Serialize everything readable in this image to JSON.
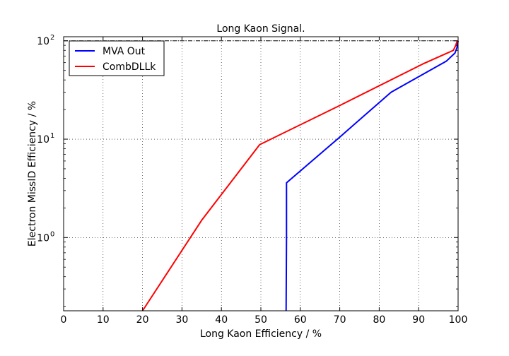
{
  "chart_data": {
    "type": "line",
    "title": "Long Kaon Signal.",
    "xlabel": "Long Kaon Efficiency / %",
    "ylabel": "Electron MissID Efficiency / %",
    "xlim": [
      0,
      100
    ],
    "ylim": [
      0.18,
      110
    ],
    "yscale": "log",
    "grid": true,
    "legend_position": "top-left",
    "x_ticks": [
      0,
      10,
      20,
      30,
      40,
      50,
      60,
      70,
      80,
      90,
      100
    ],
    "x_tick_labels": [
      "0",
      "10",
      "20",
      "30",
      "40",
      "50",
      "60",
      "70",
      "80",
      "90",
      "100"
    ],
    "y_ticks": [
      1,
      10,
      100
    ],
    "y_tick_labels": [
      "10^0",
      "10^1",
      "10^2"
    ],
    "reference_line": {
      "y": 100,
      "style": "dash-dot"
    },
    "series": [
      {
        "name": "MVA Out",
        "color": "#0000ff",
        "points": [
          [
            56.4,
            0.18
          ],
          [
            56.5,
            1.0
          ],
          [
            56.5,
            3.6
          ],
          [
            70,
            10.5
          ],
          [
            83,
            30
          ],
          [
            97,
            62
          ],
          [
            99.2,
            75
          ],
          [
            99.7,
            85
          ],
          [
            100,
            100
          ]
        ]
      },
      {
        "name": "CombDLLk",
        "color": "#ff0000",
        "points": [
          [
            20,
            0.18
          ],
          [
            35,
            1.5
          ],
          [
            49.7,
            8.8
          ],
          [
            70,
            22
          ],
          [
            91,
            58
          ],
          [
            98.8,
            80
          ],
          [
            99.4,
            90
          ],
          [
            99.7,
            98
          ],
          [
            100,
            100
          ]
        ]
      }
    ]
  }
}
